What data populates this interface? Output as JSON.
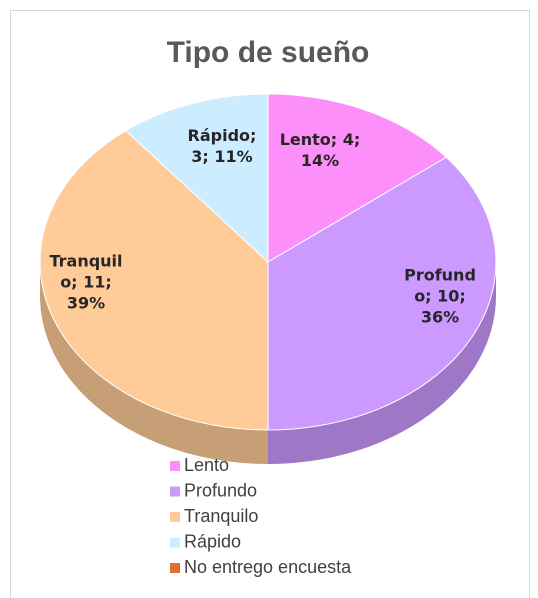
{
  "chart_data": {
    "type": "pie",
    "title": "Tipo de sueño",
    "categories": [
      "Lento",
      "Profundo",
      "Tranquilo",
      "Rápido",
      "No entrego encuesta"
    ],
    "values": [
      4,
      10,
      11,
      3,
      0
    ],
    "value_labels": [
      "Lento; 4; 14%",
      "Profundo; 10; 36%",
      "Tranquilo; 11; 39%",
      "Rápido; 3; 11%",
      null
    ],
    "colors": [
      "#fc8ff9",
      "#cc99ff",
      "#ffcc99",
      "#ccecff",
      "#e06f32"
    ],
    "legend": "bottom"
  }
}
